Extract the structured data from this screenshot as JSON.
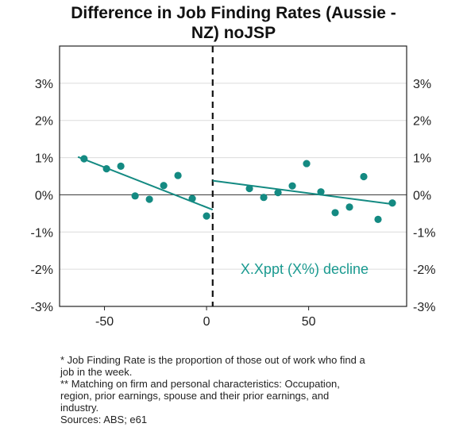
{
  "chart_data": {
    "type": "scatter",
    "title_lines": [
      "Difference in Job Finding Rates (Aussie -",
      "NZ) noJSP"
    ],
    "xlabel": "",
    "ylabel": "",
    "xlim": [
      -72,
      98
    ],
    "ylim": [
      -3,
      4
    ],
    "x_ticks": [
      -50,
      0,
      50
    ],
    "x_tick_labels": [
      "-50",
      "0",
      "50"
    ],
    "y_ticks": [
      -3,
      -2,
      -1,
      0,
      1,
      2,
      3
    ],
    "y_tick_labels": [
      "-3%",
      "-2%",
      "-1%",
      "0%",
      "1%",
      "2%",
      "3%"
    ],
    "grid": true,
    "cutoff_x": 3,
    "series": [
      {
        "points": [
          {
            "x": -60,
            "y": 0.97
          },
          {
            "x": -49,
            "y": 0.7
          },
          {
            "x": -42,
            "y": 0.77
          },
          {
            "x": -35,
            "y": -0.03
          },
          {
            "x": -28,
            "y": -0.12
          },
          {
            "x": -21,
            "y": 0.25
          },
          {
            "x": -14,
            "y": 0.52
          },
          {
            "x": -7,
            "y": -0.1
          },
          {
            "x": 0,
            "y": -0.57
          },
          {
            "x": 21,
            "y": 0.17
          },
          {
            "x": 28,
            "y": -0.07
          },
          {
            "x": 35,
            "y": 0.06
          },
          {
            "x": 42,
            "y": 0.24
          },
          {
            "x": 49,
            "y": 0.84
          },
          {
            "x": 56,
            "y": 0.08
          },
          {
            "x": 63,
            "y": -0.48
          },
          {
            "x": 70,
            "y": -0.33
          },
          {
            "x": 77,
            "y": 0.49
          },
          {
            "x": 84,
            "y": -0.66
          },
          {
            "x": 91,
            "y": -0.22
          }
        ]
      }
    ],
    "fit_lines": [
      {
        "x": [
          -63,
          3
        ],
        "y": [
          1.02,
          -0.4
        ]
      },
      {
        "x": [
          3,
          91
        ],
        "y": [
          0.38,
          -0.25
        ]
      }
    ],
    "annotation": {
      "text": "X.Xppt (X%) decline",
      "x": 48,
      "y": -2.0
    },
    "colors": {
      "points": "#148a82",
      "fit": "#148a82",
      "cutoff": "#111111",
      "annotation": "#1a9a90"
    }
  },
  "footnotes": [
    "* Job Finding Rate is the proportion of those out of work who find a",
    "job in the week.",
    "** Matching on firm and personal characteristics: Occupation,",
    "region, prior earnings, spouse and their prior earnings, and",
    "industry.",
    "Sources: ABS; e61"
  ]
}
